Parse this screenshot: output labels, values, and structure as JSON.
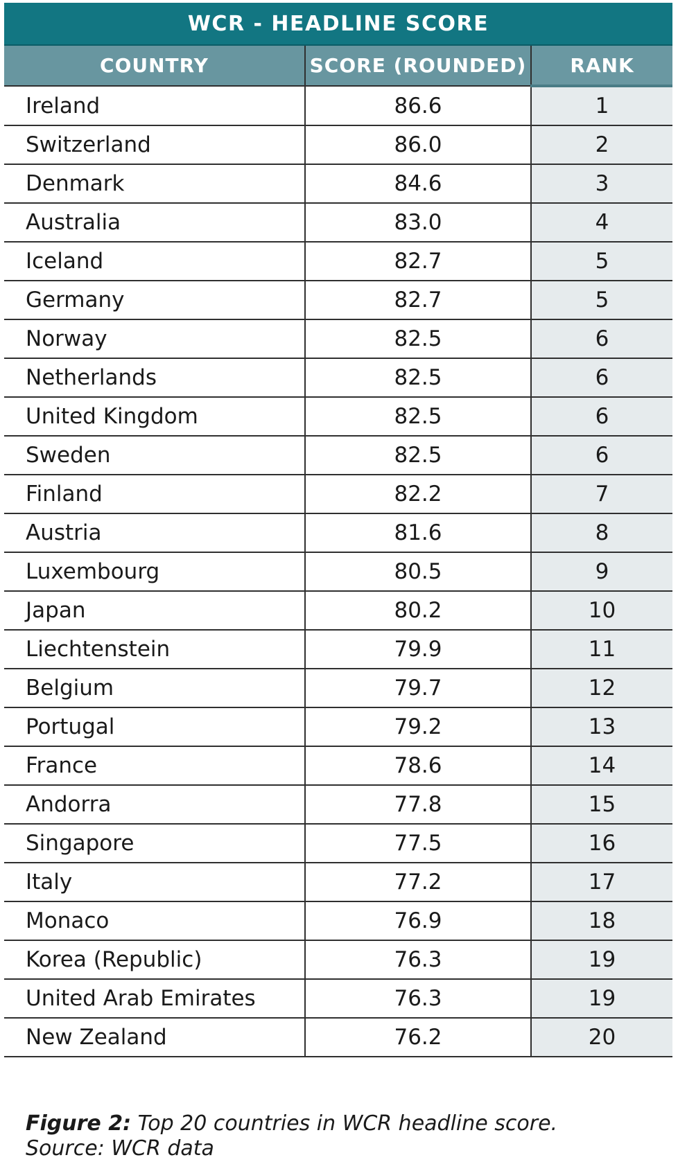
{
  "table": {
    "title": "WCR - HEADLINE SCORE",
    "headers": [
      "COUNTRY",
      "SCORE (ROUNDED)",
      "RANK"
    ],
    "rows": [
      {
        "country": "Ireland",
        "score": "86.6",
        "rank": "1"
      },
      {
        "country": "Switzerland",
        "score": "86.0",
        "rank": "2"
      },
      {
        "country": "Denmark",
        "score": "84.6",
        "rank": "3"
      },
      {
        "country": "Australia",
        "score": "83.0",
        "rank": "4"
      },
      {
        "country": "Iceland",
        "score": "82.7",
        "rank": "5"
      },
      {
        "country": "Germany",
        "score": "82.7",
        "rank": "5"
      },
      {
        "country": "Norway",
        "score": "82.5",
        "rank": "6"
      },
      {
        "country": "Netherlands",
        "score": "82.5",
        "rank": "6"
      },
      {
        "country": "United Kingdom",
        "score": "82.5",
        "rank": "6"
      },
      {
        "country": "Sweden",
        "score": "82.5",
        "rank": "6"
      },
      {
        "country": "Finland",
        "score": "82.2",
        "rank": "7"
      },
      {
        "country": "Austria",
        "score": "81.6",
        "rank": "8"
      },
      {
        "country": "Luxembourg",
        "score": "80.5",
        "rank": "9"
      },
      {
        "country": "Japan",
        "score": "80.2",
        "rank": "10"
      },
      {
        "country": "Liechtenstein",
        "score": "79.9",
        "rank": "11"
      },
      {
        "country": "Belgium",
        "score": "79.7",
        "rank": "12"
      },
      {
        "country": "Portugal",
        "score": "79.2",
        "rank": "13"
      },
      {
        "country": "France",
        "score": "78.6",
        "rank": "14"
      },
      {
        "country": "Andorra",
        "score": "77.8",
        "rank": "15"
      },
      {
        "country": "Singapore",
        "score": "77.5",
        "rank": "16"
      },
      {
        "country": "Italy",
        "score": "77.2",
        "rank": "17"
      },
      {
        "country": "Monaco",
        "score": "76.9",
        "rank": "18"
      },
      {
        "country": "Korea (Republic)",
        "score": "76.3",
        "rank": "19"
      },
      {
        "country": "United Arab Emirates",
        "score": "76.3",
        "rank": "19"
      },
      {
        "country": "New Zealand",
        "score": "76.2",
        "rank": "20"
      }
    ]
  },
  "caption": {
    "figure_label": "Figure 2:",
    "text": " Top 20 countries in WCR headline score.",
    "source": "Source: WCR data"
  },
  "colors": {
    "title_bg": "#127682",
    "header_bg": "#6896a0",
    "rank_column_bg": "#e6ebed"
  }
}
